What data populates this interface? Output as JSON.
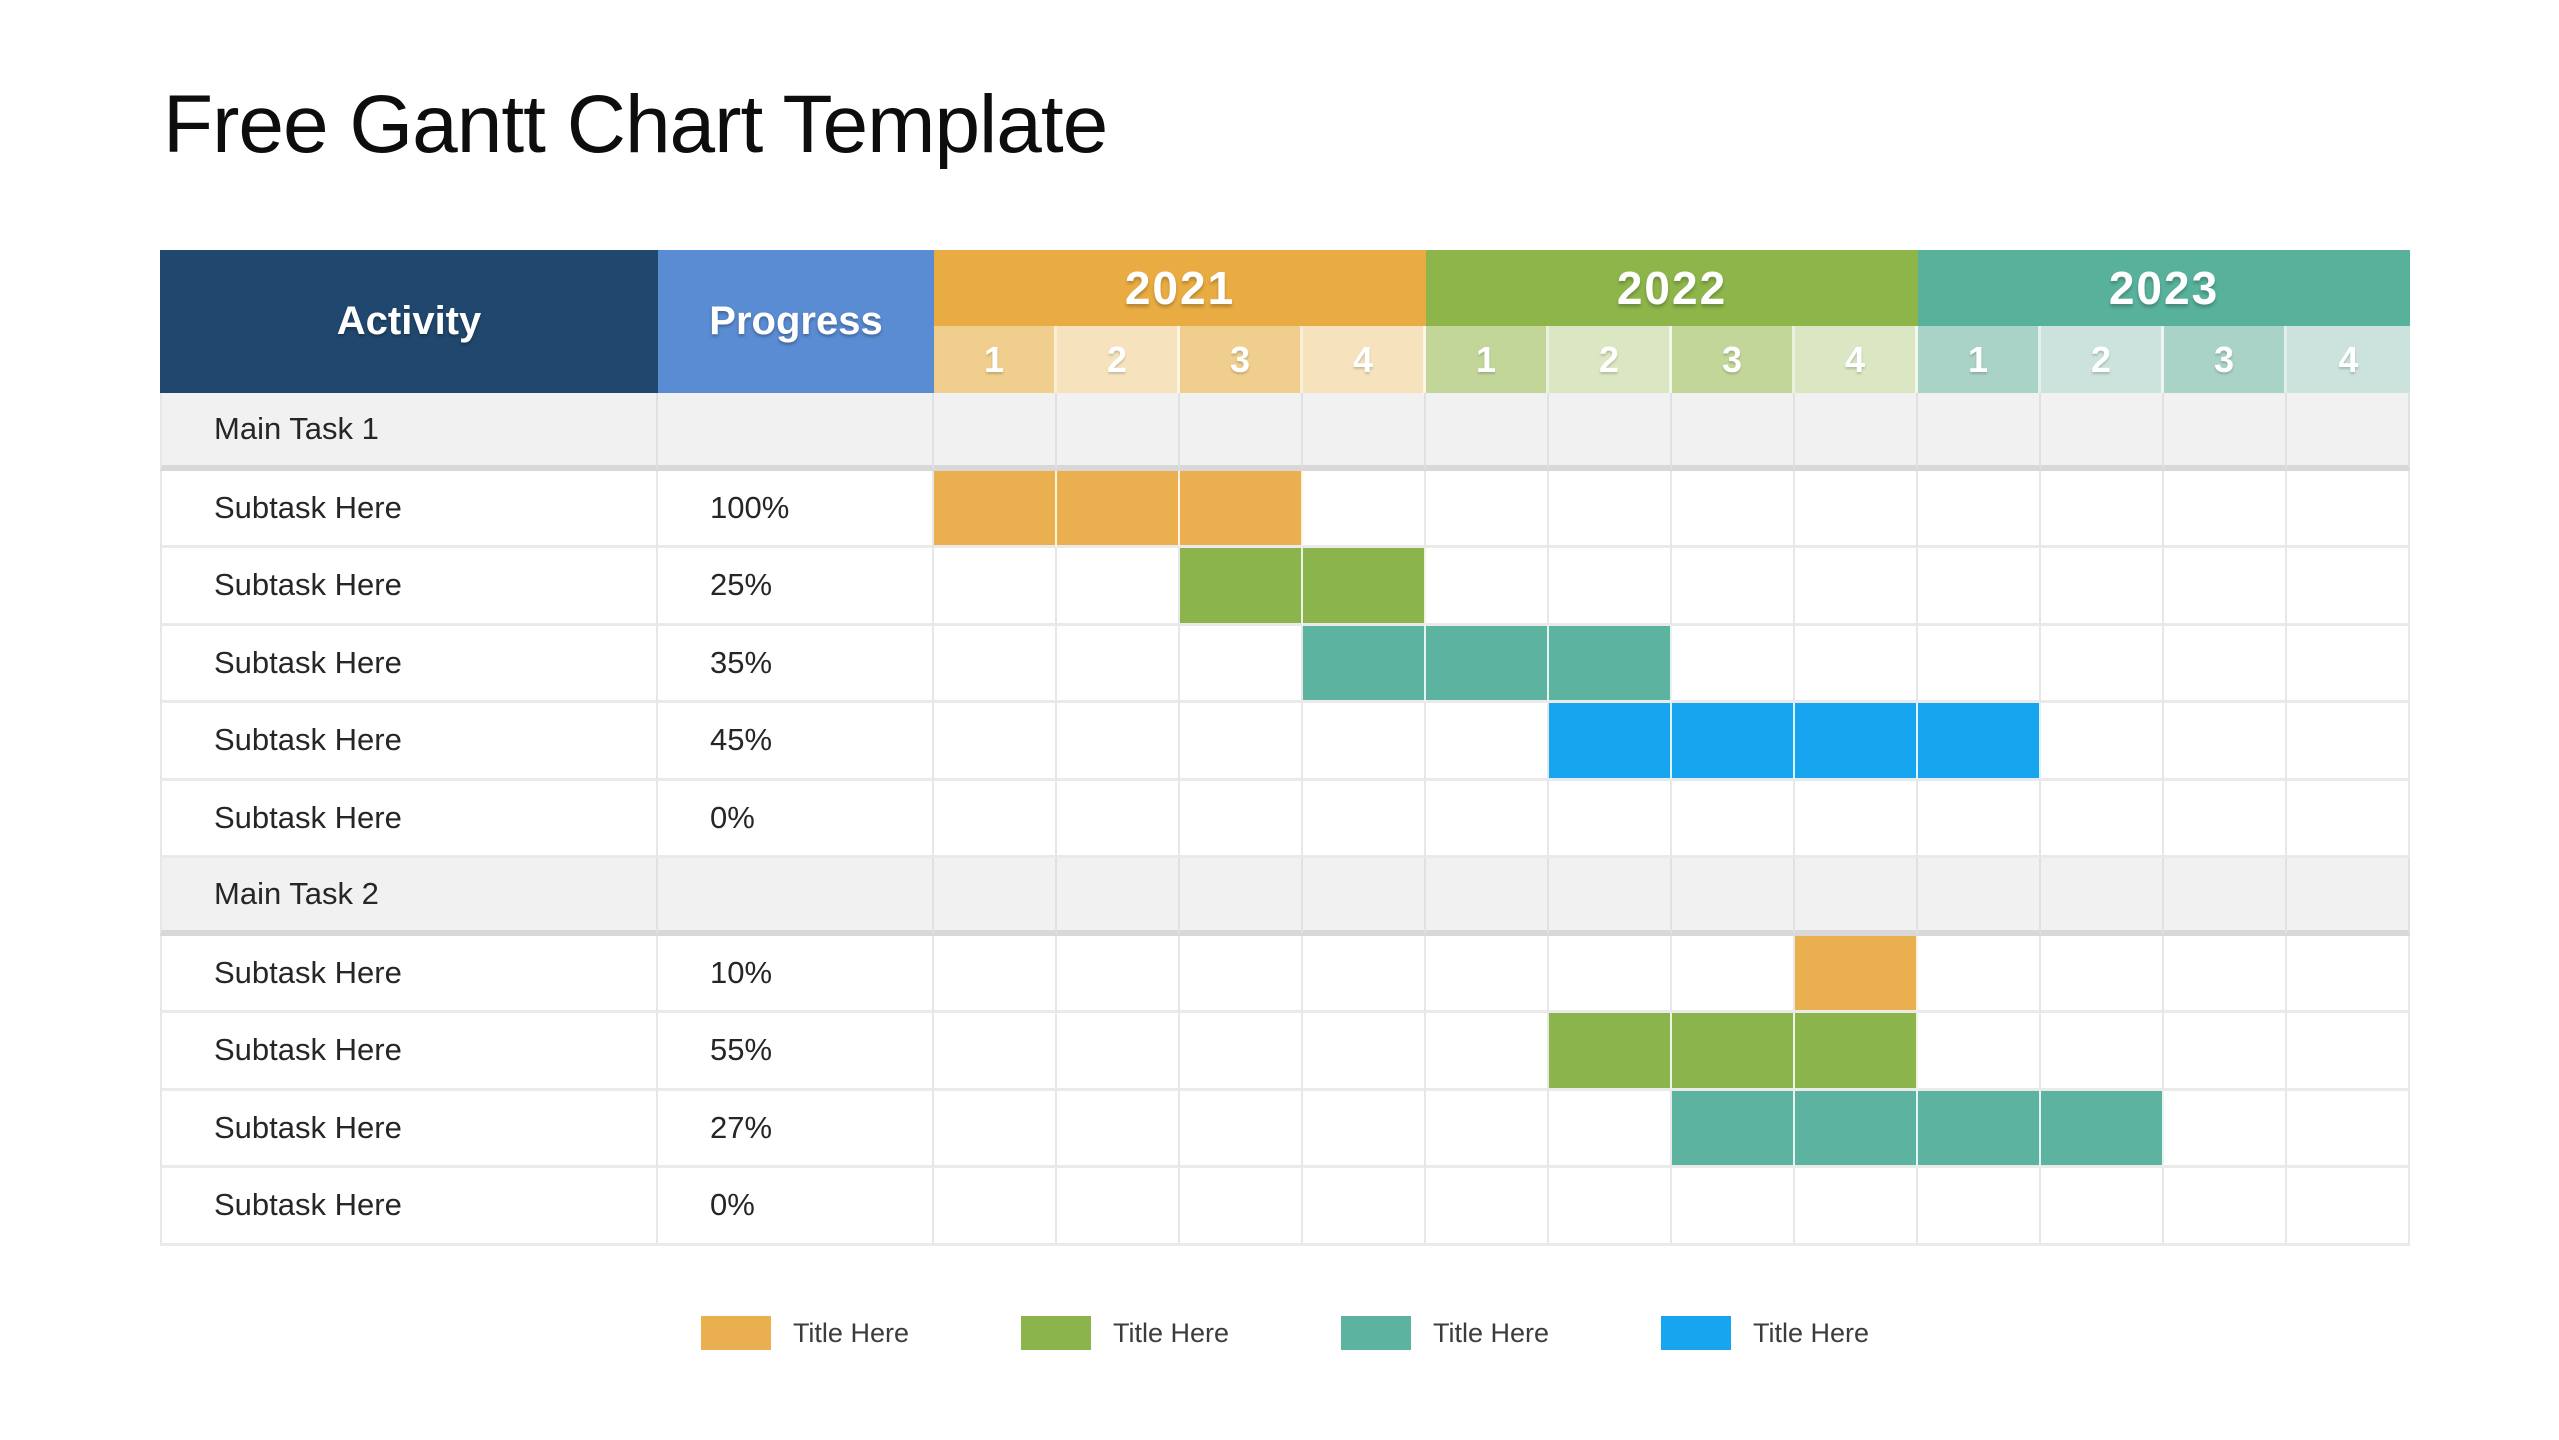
{
  "page": {
    "title": "Free Gantt Chart Template"
  },
  "table": {
    "activity_header": "Activity",
    "progress_header": "Progress",
    "years": [
      {
        "label": "2021",
        "color": "#E9AC42",
        "quarter_labels": [
          "1",
          "2",
          "3",
          "4"
        ],
        "quarter_tints": [
          "#F0CE8D",
          "#F6E3BD"
        ]
      },
      {
        "label": "2022",
        "color": "#8DB54A",
        "quarter_labels": [
          "1",
          "2",
          "3",
          "4"
        ],
        "quarter_tints": [
          "#C2D69A",
          "#DBE7C2"
        ]
      },
      {
        "label": "2023",
        "color": "#58B29B",
        "quarter_labels": [
          "1",
          "2",
          "3",
          "4"
        ],
        "quarter_tints": [
          "#A9D3C6",
          "#CBE3DC"
        ]
      }
    ],
    "rows": [
      {
        "type": "main",
        "activity": "Main Task 1",
        "progress": "",
        "bar": null
      },
      {
        "type": "sub",
        "activity": "Subtask Here",
        "progress": "100%",
        "bar": {
          "start": 0,
          "span": 3,
          "color": "#EAB04F",
          "color_name": "orange"
        }
      },
      {
        "type": "sub",
        "activity": "Subtask Here",
        "progress": "25%",
        "bar": {
          "start": 2,
          "span": 2,
          "color": "#8CB44C",
          "color_name": "green"
        }
      },
      {
        "type": "sub",
        "activity": "Subtask Here",
        "progress": "35%",
        "bar": {
          "start": 3,
          "span": 3,
          "color": "#5BB3A0",
          "color_name": "teal"
        }
      },
      {
        "type": "sub",
        "activity": "Subtask Here",
        "progress": "45%",
        "bar": {
          "start": 5,
          "span": 4,
          "color": "#17A5EF",
          "color_name": "blue"
        }
      },
      {
        "type": "sub",
        "activity": "Subtask Here",
        "progress": "0%",
        "bar": null
      },
      {
        "type": "main",
        "activity": "Main Task 2",
        "progress": "",
        "bar": null
      },
      {
        "type": "sub",
        "activity": "Subtask Here",
        "progress": "10%",
        "bar": {
          "start": 7,
          "span": 1,
          "color": "#EAB04F",
          "color_name": "orange"
        }
      },
      {
        "type": "sub",
        "activity": "Subtask Here",
        "progress": "55%",
        "bar": {
          "start": 5,
          "span": 3,
          "color": "#8CB44C",
          "color_name": "green"
        }
      },
      {
        "type": "sub",
        "activity": "Subtask Here",
        "progress": "27%",
        "bar": {
          "start": 6,
          "span": 4,
          "color": "#5BB3A0",
          "color_name": "teal"
        }
      },
      {
        "type": "sub",
        "activity": "Subtask Here",
        "progress": "0%",
        "bar": null
      }
    ]
  },
  "legend": {
    "items": [
      {
        "label": "Title Here",
        "color": "#EAB04F",
        "color_name": "orange"
      },
      {
        "label": "Title Here",
        "color": "#8CB44C",
        "color_name": "green"
      },
      {
        "label": "Title Here",
        "color": "#5BB3A0",
        "color_name": "teal"
      },
      {
        "label": "Title Here",
        "color": "#17A5EF",
        "color_name": "blue"
      }
    ]
  },
  "colors": {
    "activity_header_bg": "#20486E",
    "progress_header_bg": "#5A8CD3",
    "main_row_bg": "#F1F1F1",
    "grid_line": "#E7E7E7",
    "thick_divider": "#D8D8D8",
    "body_text": "#262626",
    "legend_text": "#3C3C3C",
    "background": "#FFFFFF"
  },
  "chart_data": {
    "type": "bar",
    "subtype": "gantt",
    "title": "Free Gantt Chart Template",
    "x_axis": {
      "years": [
        "2021",
        "2022",
        "2023"
      ],
      "quarters_per_year": [
        "1",
        "2",
        "3",
        "4"
      ]
    },
    "groups": [
      "Main Task 1",
      "Main Task 2"
    ],
    "tasks": [
      {
        "group": "Main Task 1",
        "name": "Subtask Here",
        "progress": "100%",
        "start": "2021 Q1",
        "end": "2021 Q3",
        "color": "#EAB04F"
      },
      {
        "group": "Main Task 1",
        "name": "Subtask Here",
        "progress": "25%",
        "start": "2021 Q3",
        "end": "2021 Q4",
        "color": "#8CB44C"
      },
      {
        "group": "Main Task 1",
        "name": "Subtask Here",
        "progress": "35%",
        "start": "2021 Q4",
        "end": "2022 Q2",
        "color": "#5BB3A0"
      },
      {
        "group": "Main Task 1",
        "name": "Subtask Here",
        "progress": "45%",
        "start": "2022 Q2",
        "end": "2023 Q1",
        "color": "#17A5EF"
      },
      {
        "group": "Main Task 1",
        "name": "Subtask Here",
        "progress": "0%",
        "start": null,
        "end": null,
        "color": null
      },
      {
        "group": "Main Task 2",
        "name": "Subtask Here",
        "progress": "10%",
        "start": "2022 Q4",
        "end": "2022 Q4",
        "color": "#EAB04F"
      },
      {
        "group": "Main Task 2",
        "name": "Subtask Here",
        "progress": "55%",
        "start": "2022 Q2",
        "end": "2022 Q4",
        "color": "#8CB44C"
      },
      {
        "group": "Main Task 2",
        "name": "Subtask Here",
        "progress": "27%",
        "start": "2022 Q3",
        "end": "2023 Q2",
        "color": "#5BB3A0"
      },
      {
        "group": "Main Task 2",
        "name": "Subtask Here",
        "progress": "0%",
        "start": null,
        "end": null,
        "color": null
      }
    ],
    "legend_position": "bottom-center",
    "legend_entries": [
      "Title Here",
      "Title Here",
      "Title Here",
      "Title Here"
    ]
  }
}
